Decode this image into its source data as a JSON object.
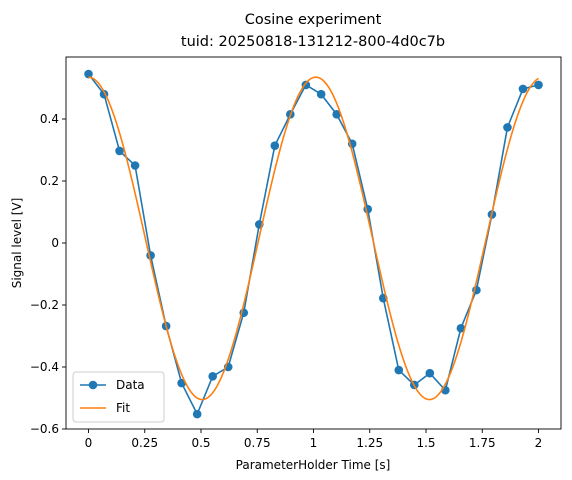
{
  "chart_data": {
    "type": "line",
    "title": "Cosine experiment",
    "subtitle": "tuid: 20250818-131212-800-4d0c7b",
    "xlabel": "ParameterHolder Time [s]",
    "ylabel": "Signal level [V]",
    "xlim": [
      -0.1,
      2.1
    ],
    "ylim": [
      -0.6,
      0.6
    ],
    "xticks": [
      0,
      0.25,
      0.5,
      0.75,
      1,
      1.25,
      1.5,
      1.75,
      2
    ],
    "xtick_labels": [
      "0",
      "0.25",
      "0.5",
      "0.75",
      "1",
      "1.25",
      "1.5",
      "1.75",
      "2"
    ],
    "yticks": [
      -0.6,
      -0.4,
      -0.2,
      0,
      0.2,
      0.4
    ],
    "ytick_labels": [
      "−0.6",
      "−0.4",
      "−0.2",
      "0",
      "0.2",
      "0.4"
    ],
    "grid": false,
    "legend_position": "lower-left",
    "series": [
      {
        "name": "Data",
        "style": "line-with-markers",
        "color": "#1f77b4",
        "x": [
          0,
          0.069,
          0.138,
          0.207,
          0.276,
          0.345,
          0.414,
          0.483,
          0.552,
          0.621,
          0.69,
          0.759,
          0.828,
          0.897,
          0.966,
          1.034,
          1.103,
          1.172,
          1.241,
          1.31,
          1.379,
          1.448,
          1.517,
          1.586,
          1.655,
          1.724,
          1.793,
          1.862,
          1.931,
          2.0
        ],
        "y": [
          0.545,
          0.48,
          0.297,
          0.25,
          -0.04,
          -0.268,
          -0.452,
          -0.552,
          -0.43,
          -0.4,
          -0.225,
          0.06,
          0.314,
          0.415,
          0.51,
          0.48,
          0.415,
          0.32,
          0.109,
          -0.178,
          -0.41,
          -0.458,
          -0.42,
          -0.475,
          -0.275,
          -0.152,
          0.092,
          0.373,
          0.497,
          0.51
        ]
      },
      {
        "name": "Fit",
        "style": "line",
        "color": "#ff7f0e",
        "model": {
          "amplitude": 0.52,
          "frequency": 0.99,
          "phase": 0.0,
          "offset": 0.015
        }
      }
    ]
  }
}
